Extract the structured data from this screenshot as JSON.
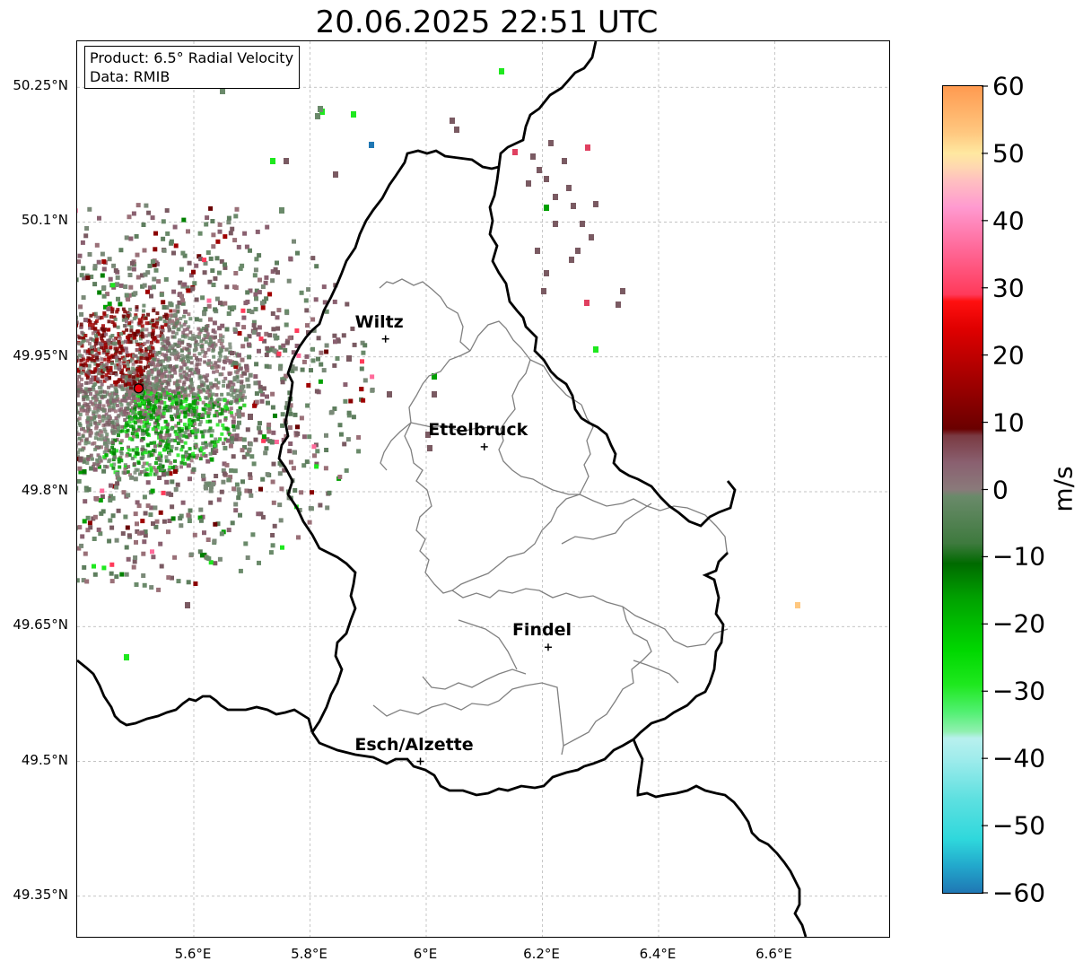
{
  "title": "20.06.2025 22:51 UTC",
  "info": {
    "product": "Product: 6.5° Radial Velocity",
    "data": "Data: RMIB"
  },
  "lat_ticks": [
    {
      "value": 50.25,
      "label": "50.25°N"
    },
    {
      "value": 50.1,
      "label": "50.1°N"
    },
    {
      "value": 49.95,
      "label": "49.95°N"
    },
    {
      "value": 49.8,
      "label": "49.8°N"
    },
    {
      "value": 49.65,
      "label": "49.65°N"
    },
    {
      "value": 49.5,
      "label": "49.5°N"
    },
    {
      "value": 49.35,
      "label": "49.35°N"
    }
  ],
  "lon_ticks": [
    {
      "value": 5.6,
      "label": "5.6°E"
    },
    {
      "value": 5.8,
      "label": "5.8°E"
    },
    {
      "value": 6.0,
      "label": "6°E"
    },
    {
      "value": 6.2,
      "label": "6.2°E"
    },
    {
      "value": 6.4,
      "label": "6.4°E"
    },
    {
      "value": 6.6,
      "label": "6.6°E"
    }
  ],
  "cities": [
    {
      "name": "Wiltz",
      "lon": 5.93,
      "lat": 49.97
    },
    {
      "name": "Ettelbruck",
      "lon": 6.1,
      "lat": 49.85
    },
    {
      "name": "Findel",
      "lon": 6.21,
      "lat": 49.627
    },
    {
      "name": "Esch/Alzette",
      "lon": 5.99,
      "lat": 49.5
    }
  ],
  "radar_site": {
    "lon": 5.505,
    "lat": 49.915,
    "color": "#e8000b"
  },
  "colorbar": {
    "unit": "m/s",
    "min": -60,
    "max": 60,
    "ticks": [
      {
        "value": 60,
        "label": "60"
      },
      {
        "value": 50,
        "label": "50"
      },
      {
        "value": 40,
        "label": "40"
      },
      {
        "value": 30,
        "label": "30"
      },
      {
        "value": 20,
        "label": "20"
      },
      {
        "value": 10,
        "label": "10"
      },
      {
        "value": 0,
        "label": "0"
      },
      {
        "value": -10,
        "label": "−10"
      },
      {
        "value": -20,
        "label": "−20"
      },
      {
        "value": -30,
        "label": "−30"
      },
      {
        "value": -40,
        "label": "−40"
      },
      {
        "value": -50,
        "label": "−50"
      },
      {
        "value": -60,
        "label": "−60"
      }
    ],
    "stops": [
      {
        "value": -60,
        "color": "#1f77b4"
      },
      {
        "value": -56,
        "color": "#22a8cc"
      },
      {
        "value": -52,
        "color": "#2fd8dc"
      },
      {
        "value": -46,
        "color": "#5ee0e0"
      },
      {
        "value": -40,
        "color": "#a0ecec"
      },
      {
        "value": -37,
        "color": "#b8f0ee"
      },
      {
        "value": -36,
        "color": "#90f0b0"
      },
      {
        "value": -33,
        "color": "#50f070"
      },
      {
        "value": -29,
        "color": "#1ee81e"
      },
      {
        "value": -24,
        "color": "#00d800"
      },
      {
        "value": -16,
        "color": "#00a000"
      },
      {
        "value": -11,
        "color": "#006a00"
      },
      {
        "value": -8,
        "color": "#3e7a3e"
      },
      {
        "value": -1,
        "color": "#6a8a6a"
      },
      {
        "value": 0,
        "color": "#8a7a7a"
      },
      {
        "value": 4,
        "color": "#8a6070"
      },
      {
        "value": 8,
        "color": "#7a3a42"
      },
      {
        "value": 9,
        "color": "#6a0000"
      },
      {
        "value": 16,
        "color": "#a00000"
      },
      {
        "value": 24,
        "color": "#e00000"
      },
      {
        "value": 28,
        "color": "#ff1010"
      },
      {
        "value": 29,
        "color": "#ff3a5a"
      },
      {
        "value": 36,
        "color": "#ff6a9a"
      },
      {
        "value": 42,
        "color": "#ff9ad0"
      },
      {
        "value": 46,
        "color": "#ffc0c0"
      },
      {
        "value": 48,
        "color": "#ffd8b0"
      },
      {
        "value": 50,
        "color": "#ffe8a0"
      },
      {
        "value": 53,
        "color": "#ffc880"
      },
      {
        "value": 60,
        "color": "#ff9a50"
      }
    ]
  }
}
